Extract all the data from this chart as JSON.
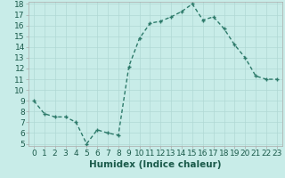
{
  "x": [
    0,
    1,
    2,
    3,
    4,
    5,
    6,
    7,
    8,
    9,
    10,
    11,
    12,
    13,
    14,
    15,
    16,
    17,
    18,
    19,
    20,
    21,
    22,
    23
  ],
  "y": [
    9.0,
    7.8,
    7.5,
    7.5,
    7.0,
    5.0,
    6.3,
    6.0,
    5.8,
    12.2,
    14.8,
    16.2,
    16.4,
    16.8,
    17.3,
    18.0,
    16.5,
    16.8,
    15.7,
    14.2,
    13.0,
    11.3,
    11.0,
    11.0
  ],
  "line_color": "#2d7a6a",
  "marker_color": "#2d7a6a",
  "bg_color": "#c8ece8",
  "grid_color": "#b0d8d4",
  "xlabel": "Humidex (Indice chaleur)",
  "ylim_min": 5,
  "ylim_max": 18,
  "xlim_min": -0.5,
  "xlim_max": 23.5,
  "yticks": [
    5,
    6,
    7,
    8,
    9,
    10,
    11,
    12,
    13,
    14,
    15,
    16,
    17,
    18
  ],
  "xticks": [
    0,
    1,
    2,
    3,
    4,
    5,
    6,
    7,
    8,
    9,
    10,
    11,
    12,
    13,
    14,
    15,
    16,
    17,
    18,
    19,
    20,
    21,
    22,
    23
  ],
  "xlabel_fontsize": 7.5,
  "tick_fontsize": 6.5,
  "linewidth": 1.0,
  "markersize": 3.5
}
